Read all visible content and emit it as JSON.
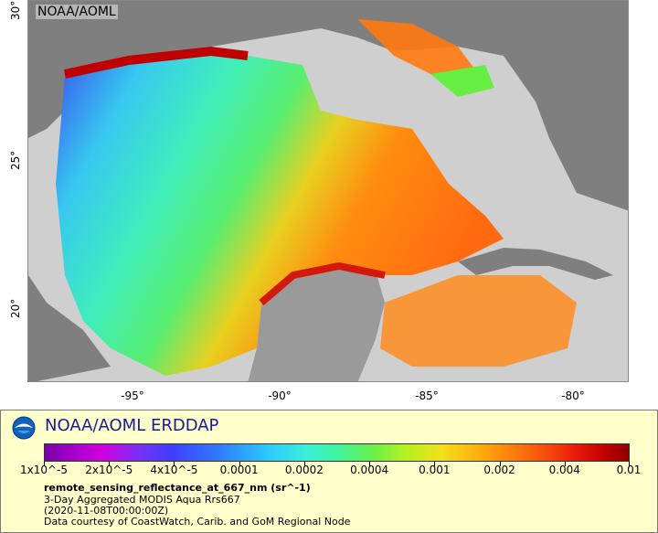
{
  "map": {
    "watermark": "NOAA/AOML",
    "y_ticks": [
      "30°",
      "25°",
      "20°"
    ],
    "x_ticks": [
      "-95°",
      "-90°",
      "-85°",
      "-80°"
    ]
  },
  "legend": {
    "brand": "NOAA/AOML ERDDAP",
    "logo_icon": "noaa-logo-icon",
    "colorbar_labels": [
      "1x10^-5",
      "2x10^-5",
      "4x10^-5",
      "0.0001",
      "0.0002",
      "0.0004",
      "0.001",
      "0.002",
      "0.004",
      "0.01"
    ],
    "variable_name": "remote_sensing_reflectance_at_667_nm (sr^-1)",
    "dataset_title": "3-Day Aggregated MODIS Aqua Rrs667",
    "time": "(2020-11-08T00:00:00Z)",
    "credit": "Data courtesy of CoastWatch, Carib. and GoM Regional Node"
  },
  "colors": {
    "land": "#7f7f7f",
    "nodata": "#cfcfcf",
    "legend_bg": "#ffffcc",
    "brand": "#1a1a99"
  }
}
